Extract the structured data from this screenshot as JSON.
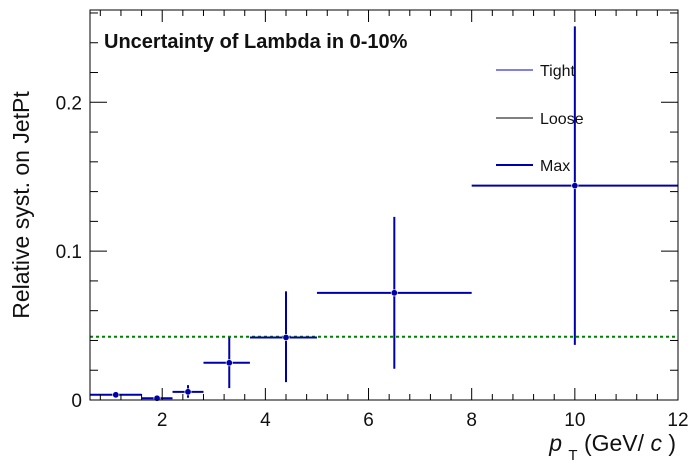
{
  "chart_data": {
    "type": "scatter",
    "title": "Uncertainty of Lambda in 0-10%",
    "xlabel": {
      "italic_part": "p",
      "subscript": "T",
      "unit_prefix": "(GeV/",
      "unit_italic": "c",
      "unit_suffix": ")"
    },
    "ylabel": "Relative syst. on JetPt",
    "xlim": [
      0.6,
      12
    ],
    "ylim": [
      0,
      0.262
    ],
    "x_ticks": [
      2,
      4,
      6,
      8,
      10,
      12
    ],
    "y_ticks": [
      0,
      0.1,
      0.2
    ],
    "x_tick_labels": [
      "2",
      "4",
      "6",
      "8",
      "10",
      "12"
    ],
    "y_tick_labels": [
      "0",
      "0.1",
      "0.2"
    ],
    "legend_position": "top-right",
    "series": [
      {
        "name": "Tight",
        "color": "#0000cc",
        "points": []
      },
      {
        "name": "Loose",
        "color": "#000000",
        "points": []
      },
      {
        "name": "Max",
        "color": "#0000aa",
        "points": [
          {
            "x": 1.1,
            "xlow": 0.6,
            "xhigh": 1.6,
            "y": 0.0035,
            "ylow": 0.0028,
            "yhigh": 0.0042
          },
          {
            "x": 1.9,
            "xlow": 1.6,
            "xhigh": 2.2,
            "y": 0.0012,
            "ylow": 0.0008,
            "yhigh": 0.0016
          },
          {
            "x": 2.5,
            "xlow": 2.2,
            "xhigh": 2.8,
            "y": 0.0055,
            "ylow": 0.0015,
            "yhigh": 0.01
          },
          {
            "x": 3.3,
            "xlow": 2.8,
            "xhigh": 3.7,
            "y": 0.025,
            "ylow": 0.008,
            "yhigh": 0.042
          },
          {
            "x": 4.4,
            "xlow": 3.7,
            "xhigh": 5.0,
            "y": 0.042,
            "ylow": 0.012,
            "yhigh": 0.073
          },
          {
            "x": 6.5,
            "xlow": 5.0,
            "xhigh": 8.0,
            "y": 0.072,
            "ylow": 0.021,
            "yhigh": 0.123
          },
          {
            "x": 10.0,
            "xlow": 8.0,
            "xhigh": 12.0,
            "y": 0.144,
            "ylow": 0.037,
            "yhigh": 0.251
          }
        ]
      }
    ],
    "reference_line": {
      "y": 0.0425,
      "color": "#008000",
      "style": "dashed"
    }
  }
}
